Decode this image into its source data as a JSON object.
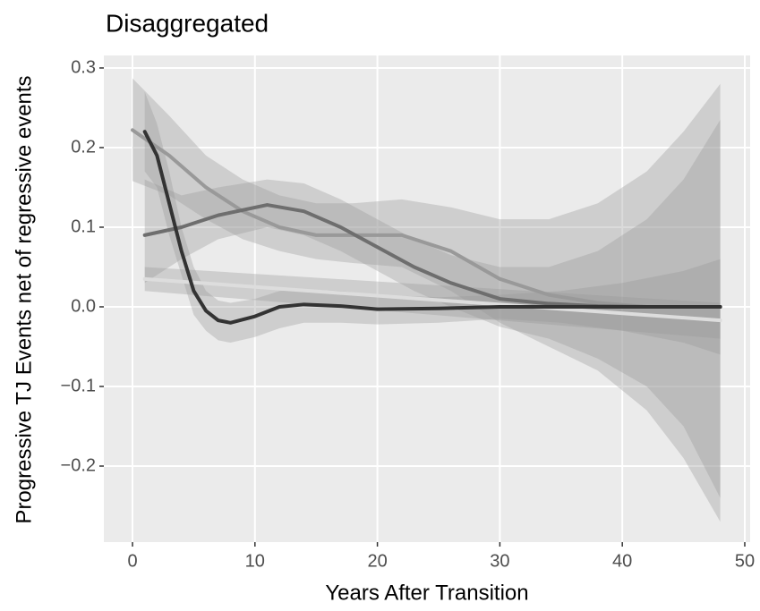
{
  "chart_data": {
    "type": "smooth",
    "title": "Disaggregated",
    "x_label": "Years After Transition",
    "y_label": "Progressive TJ Events net of regressive events",
    "xlim": [
      -2.34,
      50.44
    ],
    "ylim": [
      -0.2955,
      0.3157
    ],
    "xticks": [
      0,
      10,
      20,
      30,
      40,
      50
    ],
    "yticks": [
      {
        "value": -0.2,
        "label": "−0.2"
      },
      {
        "value": -0.1,
        "label": "−0.1"
      },
      {
        "value": 0,
        "label": "0.0"
      },
      {
        "value": 0.1,
        "label": "0.1"
      },
      {
        "value": 0.2,
        "label": "0.2"
      },
      {
        "value": 0.3,
        "label": "0.3"
      }
    ],
    "grid": true,
    "ribbon_color": "#999999",
    "series": [
      {
        "color": "#999999",
        "x": [
          0,
          3,
          6,
          9,
          12,
          15,
          18,
          22,
          26,
          30,
          34,
          38,
          42,
          45,
          48
        ],
        "values": [
          0.222,
          0.19,
          0.15,
          0.12,
          0.1,
          0.09,
          0.09,
          0.09,
          0.07,
          0.035,
          0.015,
          0.005,
          0,
          0,
          0
        ],
        "upper": [
          0.287,
          0.24,
          0.19,
          0.16,
          0.14,
          0.13,
          0.13,
          0.135,
          0.125,
          0.11,
          0.11,
          0.13,
          0.17,
          0.22,
          0.28
        ],
        "lower": [
          0.158,
          0.14,
          0.11,
          0.085,
          0.07,
          0.06,
          0.055,
          0.05,
          0.02,
          -0.02,
          -0.05,
          -0.08,
          -0.13,
          -0.19,
          -0.27
        ]
      },
      {
        "color": "#6e6e6e",
        "x": [
          1,
          4,
          7,
          11,
          14,
          17,
          20,
          23,
          26,
          30,
          34,
          38,
          42,
          45,
          48
        ],
        "values": [
          0.09,
          0.1,
          0.115,
          0.128,
          0.12,
          0.1,
          0.075,
          0.05,
          0.03,
          0.01,
          0.004,
          0.001,
          0,
          0,
          0
        ],
        "upper": [
          0.16,
          0.14,
          0.15,
          0.16,
          0.155,
          0.135,
          0.11,
          0.085,
          0.065,
          0.05,
          0.05,
          0.07,
          0.11,
          0.16,
          0.235
        ],
        "lower": [
          0.03,
          0.06,
          0.085,
          0.1,
          0.09,
          0.07,
          0.045,
          0.02,
          0,
          -0.025,
          -0.04,
          -0.065,
          -0.1,
          -0.15,
          -0.24
        ]
      },
      {
        "color": "#dddddd",
        "x": [
          1,
          48
        ],
        "values": [
          0.035,
          -0.017
        ],
        "upper": [
          0.05,
          0.005
        ],
        "lower": [
          0.02,
          -0.04
        ]
      },
      {
        "color": "#333333",
        "x": [
          1,
          2,
          3,
          4,
          5,
          6,
          7,
          8,
          10,
          12,
          14,
          17,
          20,
          25,
          30,
          35,
          40,
          45,
          48
        ],
        "values": [
          0.22,
          0.19,
          0.13,
          0.07,
          0.02,
          -0.005,
          -0.017,
          -0.02,
          -0.012,
          0,
          0.003,
          0.001,
          -0.003,
          -0.002,
          0,
          0,
          0,
          0,
          0
        ],
        "upper": [
          0.27,
          0.23,
          0.17,
          0.1,
          0.05,
          0.02,
          0.008,
          0.005,
          0.01,
          0.02,
          0.022,
          0.02,
          0.015,
          0.012,
          0.015,
          0.02,
          0.03,
          0.045,
          0.06
        ],
        "lower": [
          0.17,
          0.15,
          0.09,
          0.04,
          -0.01,
          -0.03,
          -0.042,
          -0.045,
          -0.038,
          -0.027,
          -0.02,
          -0.02,
          -0.022,
          -0.02,
          -0.015,
          -0.02,
          -0.03,
          -0.045,
          -0.06
        ]
      }
    ]
  }
}
